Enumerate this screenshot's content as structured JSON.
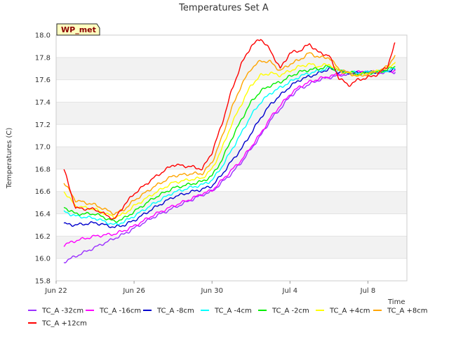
{
  "chart_data": {
    "type": "line",
    "title": "Temperatures Set A",
    "xlabel": "Time",
    "ylabel": "Temperatures (C)",
    "badge": "WP_met",
    "xlim": [
      0,
      18
    ],
    "ylim": [
      15.8,
      18.0
    ],
    "x_ticks": [
      {
        "x": 0,
        "label": "Jun 22"
      },
      {
        "x": 4,
        "label": "Jun 26"
      },
      {
        "x": 8,
        "label": "Jun 30"
      },
      {
        "x": 12,
        "label": "Jul 4"
      },
      {
        "x": 16,
        "label": "Jul 8"
      }
    ],
    "y_ticks": [
      15.8,
      16.0,
      16.2,
      16.4,
      16.6,
      16.8,
      17.0,
      17.2,
      17.4,
      17.6,
      17.8,
      18.0
    ],
    "y_tick_labels": [
      "15.8",
      "16.0",
      "16.2",
      "16.4",
      "16.6",
      "16.8",
      "17.0",
      "17.2",
      "17.4",
      "17.6",
      "17.8",
      "18.0"
    ],
    "band_color": "#f2f2f2",
    "x": [
      0.4,
      1.0,
      2.0,
      3.0,
      3.5,
      4.0,
      5.0,
      6.0,
      7.0,
      7.5,
      8.0,
      8.5,
      9.0,
      9.5,
      10.0,
      10.5,
      11.0,
      11.5,
      12.0,
      12.5,
      13.0,
      13.5,
      14.0,
      14.5,
      15.0,
      15.5,
      16.0,
      16.5,
      17.0,
      17.4
    ],
    "series": [
      {
        "name": "TC_A -32cm",
        "color": "#9b30ff",
        "values": [
          15.97,
          16.02,
          16.1,
          16.18,
          16.22,
          16.27,
          16.37,
          16.45,
          16.53,
          16.57,
          16.6,
          16.68,
          16.76,
          16.86,
          16.98,
          17.1,
          17.24,
          17.34,
          17.45,
          17.52,
          17.56,
          17.6,
          17.62,
          17.64,
          17.65,
          17.66,
          17.66,
          17.66,
          17.67,
          17.67
        ]
      },
      {
        "name": "TC_A -16cm",
        "color": "#ff00ff",
        "values": [
          16.12,
          16.16,
          16.2,
          16.22,
          16.25,
          16.29,
          16.39,
          16.47,
          16.54,
          16.58,
          16.61,
          16.7,
          16.79,
          16.88,
          17.0,
          17.12,
          17.26,
          17.37,
          17.47,
          17.54,
          17.58,
          17.61,
          17.63,
          17.65,
          17.66,
          17.67,
          17.67,
          17.67,
          17.68,
          17.68
        ]
      },
      {
        "name": "TC_A -8cm",
        "color": "#0000cd",
        "values": [
          16.31,
          16.3,
          16.32,
          16.28,
          16.3,
          16.34,
          16.45,
          16.55,
          16.6,
          16.62,
          16.65,
          16.75,
          16.87,
          16.98,
          17.12,
          17.26,
          17.38,
          17.46,
          17.54,
          17.6,
          17.63,
          17.66,
          17.7,
          17.67,
          17.66,
          17.66,
          17.67,
          17.67,
          17.68,
          17.69
        ]
      },
      {
        "name": "TC_A -4cm",
        "color": "#00ffff",
        "values": [
          16.42,
          16.38,
          16.36,
          16.3,
          16.33,
          16.38,
          16.49,
          16.59,
          16.64,
          16.66,
          16.7,
          16.82,
          16.97,
          17.12,
          17.28,
          17.4,
          17.48,
          17.53,
          17.58,
          17.63,
          17.66,
          17.68,
          17.71,
          17.68,
          17.67,
          17.66,
          17.67,
          17.67,
          17.68,
          17.7
        ]
      },
      {
        "name": "TC_A -2cm",
        "color": "#00ee00",
        "values": [
          16.46,
          16.4,
          16.4,
          16.33,
          16.36,
          16.42,
          16.54,
          16.63,
          16.67,
          16.69,
          16.74,
          16.88,
          17.07,
          17.24,
          17.4,
          17.5,
          17.55,
          17.58,
          17.63,
          17.67,
          17.69,
          17.7,
          17.72,
          17.68,
          17.67,
          17.65,
          17.66,
          17.67,
          17.69,
          17.72
        ]
      },
      {
        "name": "TC_A +4cm",
        "color": "#ffff00",
        "values": [
          16.6,
          16.47,
          16.44,
          16.37,
          16.4,
          16.47,
          16.58,
          16.68,
          16.71,
          16.72,
          16.8,
          16.98,
          17.2,
          17.38,
          17.55,
          17.64,
          17.66,
          17.64,
          17.68,
          17.72,
          17.74,
          17.72,
          17.74,
          17.68,
          17.66,
          17.64,
          17.66,
          17.68,
          17.7,
          17.76
        ]
      },
      {
        "name": "TC_A +8cm",
        "color": "#ffa500",
        "values": [
          16.68,
          16.52,
          16.48,
          16.4,
          16.44,
          16.52,
          16.64,
          16.74,
          16.76,
          16.76,
          16.86,
          17.08,
          17.34,
          17.55,
          17.7,
          17.77,
          17.76,
          17.68,
          17.74,
          17.78,
          17.84,
          17.8,
          17.8,
          17.7,
          17.66,
          17.63,
          17.65,
          17.67,
          17.72,
          17.82
        ]
      },
      {
        "name": "TC_A +12cm",
        "color": "#ff0000",
        "values": [
          16.8,
          16.45,
          16.44,
          16.35,
          16.48,
          16.58,
          16.72,
          16.84,
          16.82,
          16.8,
          16.95,
          17.2,
          17.5,
          17.74,
          17.9,
          17.97,
          17.86,
          17.7,
          17.84,
          17.86,
          17.92,
          17.84,
          17.82,
          17.62,
          17.55,
          17.6,
          17.62,
          17.65,
          17.72,
          17.93
        ]
      }
    ]
  }
}
